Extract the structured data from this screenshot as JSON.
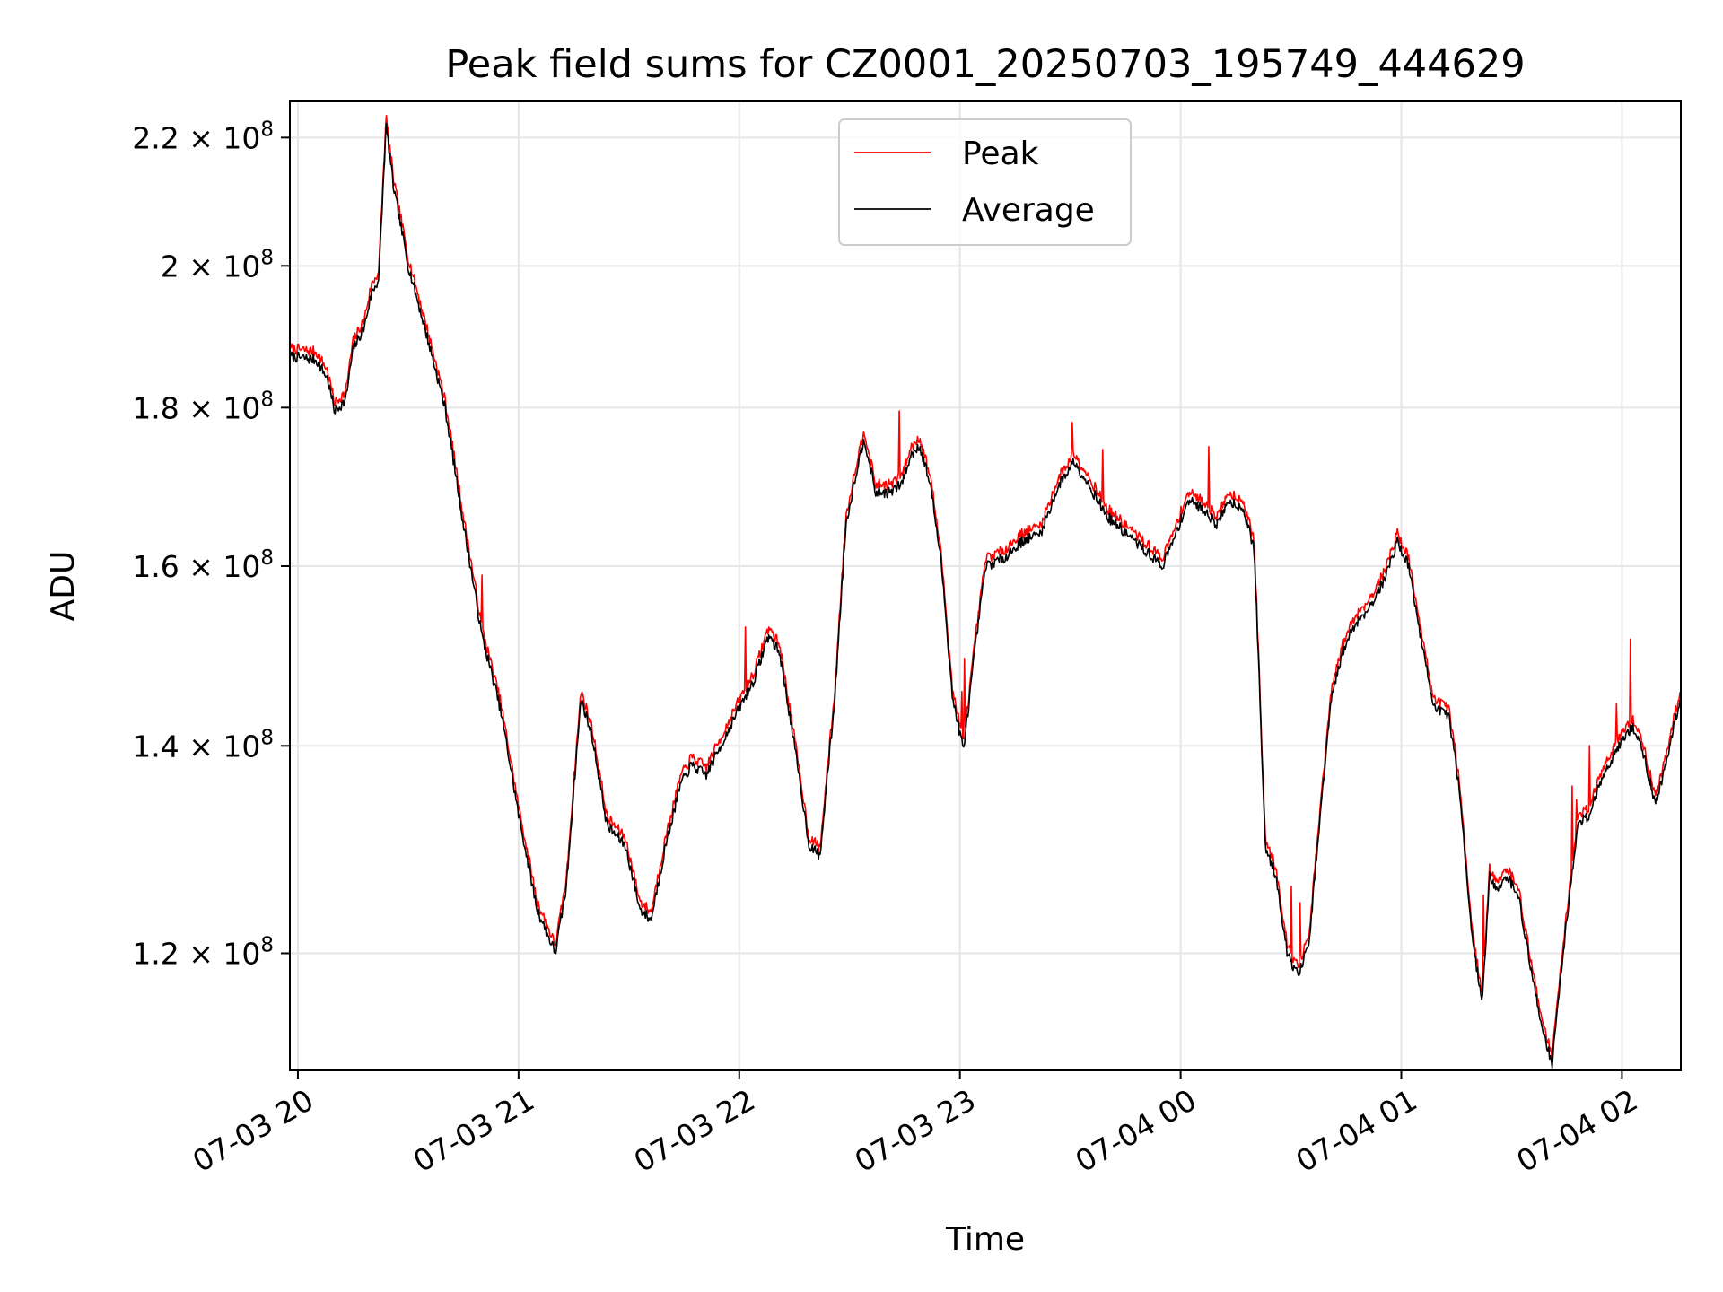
{
  "chart_data": {
    "type": "line",
    "title": "Peak field sums for CZ0001_20250703_195749_444629",
    "xlabel": "Time",
    "ylabel": "ADU",
    "x_range": [
      "07-03 19:57:49",
      "07-04 02:16:00"
    ],
    "ylim": [
      110000000,
      226000000
    ],
    "y_scale": "log",
    "grid": true,
    "legend_position": "top-center",
    "x_ticks": [
      {
        "t": "07-03 20:00",
        "label": "07-03 20"
      },
      {
        "t": "07-03 21:00",
        "label": "07-03 21"
      },
      {
        "t": "07-03 22:00",
        "label": "07-03 22"
      },
      {
        "t": "07-03 23:00",
        "label": "07-03 23"
      },
      {
        "t": "07-04 00:00",
        "label": "07-04 00"
      },
      {
        "t": "07-04 01:00",
        "label": "07-04 01"
      },
      {
        "t": "07-04 02:00",
        "label": "07-04 02"
      }
    ],
    "y_ticks": [
      {
        "value": 120000000,
        "mantissa": "1.2",
        "base": "10",
        "exp": "8"
      },
      {
        "value": 140000000,
        "mantissa": "1.4",
        "base": "10",
        "exp": "8"
      },
      {
        "value": 160000000,
        "mantissa": "1.6",
        "base": "10",
        "exp": "8"
      },
      {
        "value": 180000000,
        "mantissa": "1.8",
        "base": "10",
        "exp": "8"
      },
      {
        "value": 200000000,
        "mantissa": "2",
        "base": "10",
        "exp": "8"
      },
      {
        "value": 220000000,
        "mantissa": "2.2",
        "base": "10",
        "exp": "8"
      }
    ],
    "series": [
      {
        "name": "Peak",
        "color": "#ff0000",
        "offset_fraction": 0.006
      },
      {
        "name": "Average",
        "color": "#000000",
        "offset_fraction": 0.0
      }
    ],
    "points": [
      [
        "07-03 19:57:49",
        187.0
      ],
      [
        "07-03 20:05",
        186.5
      ],
      [
        "07-03 20:08",
        184.0
      ],
      [
        "07-03 20:10",
        179.5
      ],
      [
        "07-03 20:13",
        181.0
      ],
      [
        "07-03 20:15",
        188.0
      ],
      [
        "07-03 20:18",
        191.0
      ],
      [
        "07-03 20:20",
        196.0
      ],
      [
        "07-03 20:22",
        198.0
      ],
      [
        "07-03 20:24",
        222.0
      ],
      [
        "07-03 20:26",
        212.0
      ],
      [
        "07-03 20:30",
        200.0
      ],
      [
        "07-03 20:35",
        190.0
      ],
      [
        "07-03 20:40",
        180.0
      ],
      [
        "07-03 20:45",
        165.0
      ],
      [
        "07-03 20:50",
        152.0
      ],
      [
        "07-03 20:55",
        144.0
      ],
      [
        "07-03 21:00",
        133.0
      ],
      [
        "07-03 21:05",
        124.0
      ],
      [
        "07-03 21:10",
        120.0
      ],
      [
        "07-03 21:13",
        126.0
      ],
      [
        "07-03 21:17",
        145.0
      ],
      [
        "07-03 21:20",
        141.0
      ],
      [
        "07-03 21:24",
        132.0
      ],
      [
        "07-03 21:29",
        130.0
      ],
      [
        "07-03 21:33",
        124.0
      ],
      [
        "07-03 21:36",
        123.0
      ],
      [
        "07-03 21:40",
        130.0
      ],
      [
        "07-03 21:44",
        136.0
      ],
      [
        "07-03 21:47",
        138.0
      ],
      [
        "07-03 21:51",
        137.0
      ],
      [
        "07-03 21:55",
        140.0
      ],
      [
        "07-03 22:00",
        144.0
      ],
      [
        "07-03 22:04",
        147.0
      ],
      [
        "07-03 22:08",
        152.0
      ],
      [
        "07-03 22:11",
        150.0
      ],
      [
        "07-03 22:15",
        140.0
      ],
      [
        "07-03 22:19",
        130.0
      ],
      [
        "07-03 22:22",
        129.0
      ],
      [
        "07-03 22:26",
        145.0
      ],
      [
        "07-03 22:29",
        165.0
      ],
      [
        "07-03 22:32",
        172.0
      ],
      [
        "07-03 22:34",
        176.0
      ],
      [
        "07-03 22:37",
        169.0
      ],
      [
        "07-03 22:41",
        169.0
      ],
      [
        "07-03 22:44",
        170.0
      ],
      [
        "07-03 22:47",
        174.0
      ],
      [
        "07-03 22:49",
        175.0
      ],
      [
        "07-03 22:52",
        170.0
      ],
      [
        "07-03 22:55",
        160.0
      ],
      [
        "07-03 22:58",
        145.0
      ],
      [
        "07-03 23:01",
        139.5
      ],
      [
        "07-03 23:04",
        150.0
      ],
      [
        "07-03 23:07",
        160.0
      ],
      [
        "07-03 23:12",
        161.0
      ],
      [
        "07-03 23:17",
        163.0
      ],
      [
        "07-03 23:22",
        164.0
      ],
      [
        "07-03 23:27",
        170.0
      ],
      [
        "07-03 23:31",
        173.0
      ],
      [
        "07-03 23:35",
        170.0
      ],
      [
        "07-03 23:40",
        166.0
      ],
      [
        "07-03 23:45",
        164.0
      ],
      [
        "07-03 23:50",
        162.0
      ],
      [
        "07-03 23:55",
        160.0
      ],
      [
        "07-03 23:58",
        163.0
      ],
      [
        "07-04 00:02",
        168.0
      ],
      [
        "07-04 00:06",
        167.0
      ],
      [
        "07-04 00:10",
        165.0
      ],
      [
        "07-04 00:13",
        168.0
      ],
      [
        "07-04 00:17",
        167.0
      ],
      [
        "07-04 00:20",
        162.0
      ],
      [
        "07-04 00:22",
        140.0
      ],
      [
        "07-04 00:23",
        130.0
      ],
      [
        "07-04 00:26",
        127.0
      ],
      [
        "07-04 00:29",
        120.0
      ],
      [
        "07-04 00:32",
        118.0
      ],
      [
        "07-04 00:35",
        121.0
      ],
      [
        "07-04 00:38",
        133.0
      ],
      [
        "07-04 00:41",
        145.0
      ],
      [
        "07-04 00:44",
        150.0
      ],
      [
        "07-04 00:47",
        153.0
      ],
      [
        "07-04 00:51",
        155.0
      ],
      [
        "07-04 00:55",
        158.0
      ],
      [
        "07-04 00:59",
        163.0
      ],
      [
        "07-04 01:02",
        160.0
      ],
      [
        "07-04 01:06",
        150.0
      ],
      [
        "07-04 01:09",
        144.0
      ],
      [
        "07-04 01:13",
        143.0
      ],
      [
        "07-04 01:16",
        135.0
      ],
      [
        "07-04 01:19",
        122.0
      ],
      [
        "07-04 01:22",
        115.5
      ],
      [
        "07-04 01:24",
        127.0
      ],
      [
        "07-04 01:26",
        126.0
      ],
      [
        "07-04 01:29",
        127.0
      ],
      [
        "07-04 01:32",
        125.0
      ],
      [
        "07-04 01:35",
        119.0
      ],
      [
        "07-04 01:38",
        114.0
      ],
      [
        "07-04 01:41",
        110.5
      ],
      [
        "07-04 01:44",
        120.0
      ],
      [
        "07-04 01:48",
        132.0
      ],
      [
        "07-04 01:51",
        133.0
      ],
      [
        "07-04 01:55",
        137.0
      ],
      [
        "07-04 01:59",
        140.0
      ],
      [
        "07-04 02:03",
        142.0
      ],
      [
        "07-04 02:06",
        139.0
      ],
      [
        "07-04 02:09",
        134.0
      ],
      [
        "07-04 02:12",
        138.0
      ],
      [
        "07-04 02:14",
        142.0
      ],
      [
        "07-04 02:16:00",
        145.0
      ]
    ]
  }
}
